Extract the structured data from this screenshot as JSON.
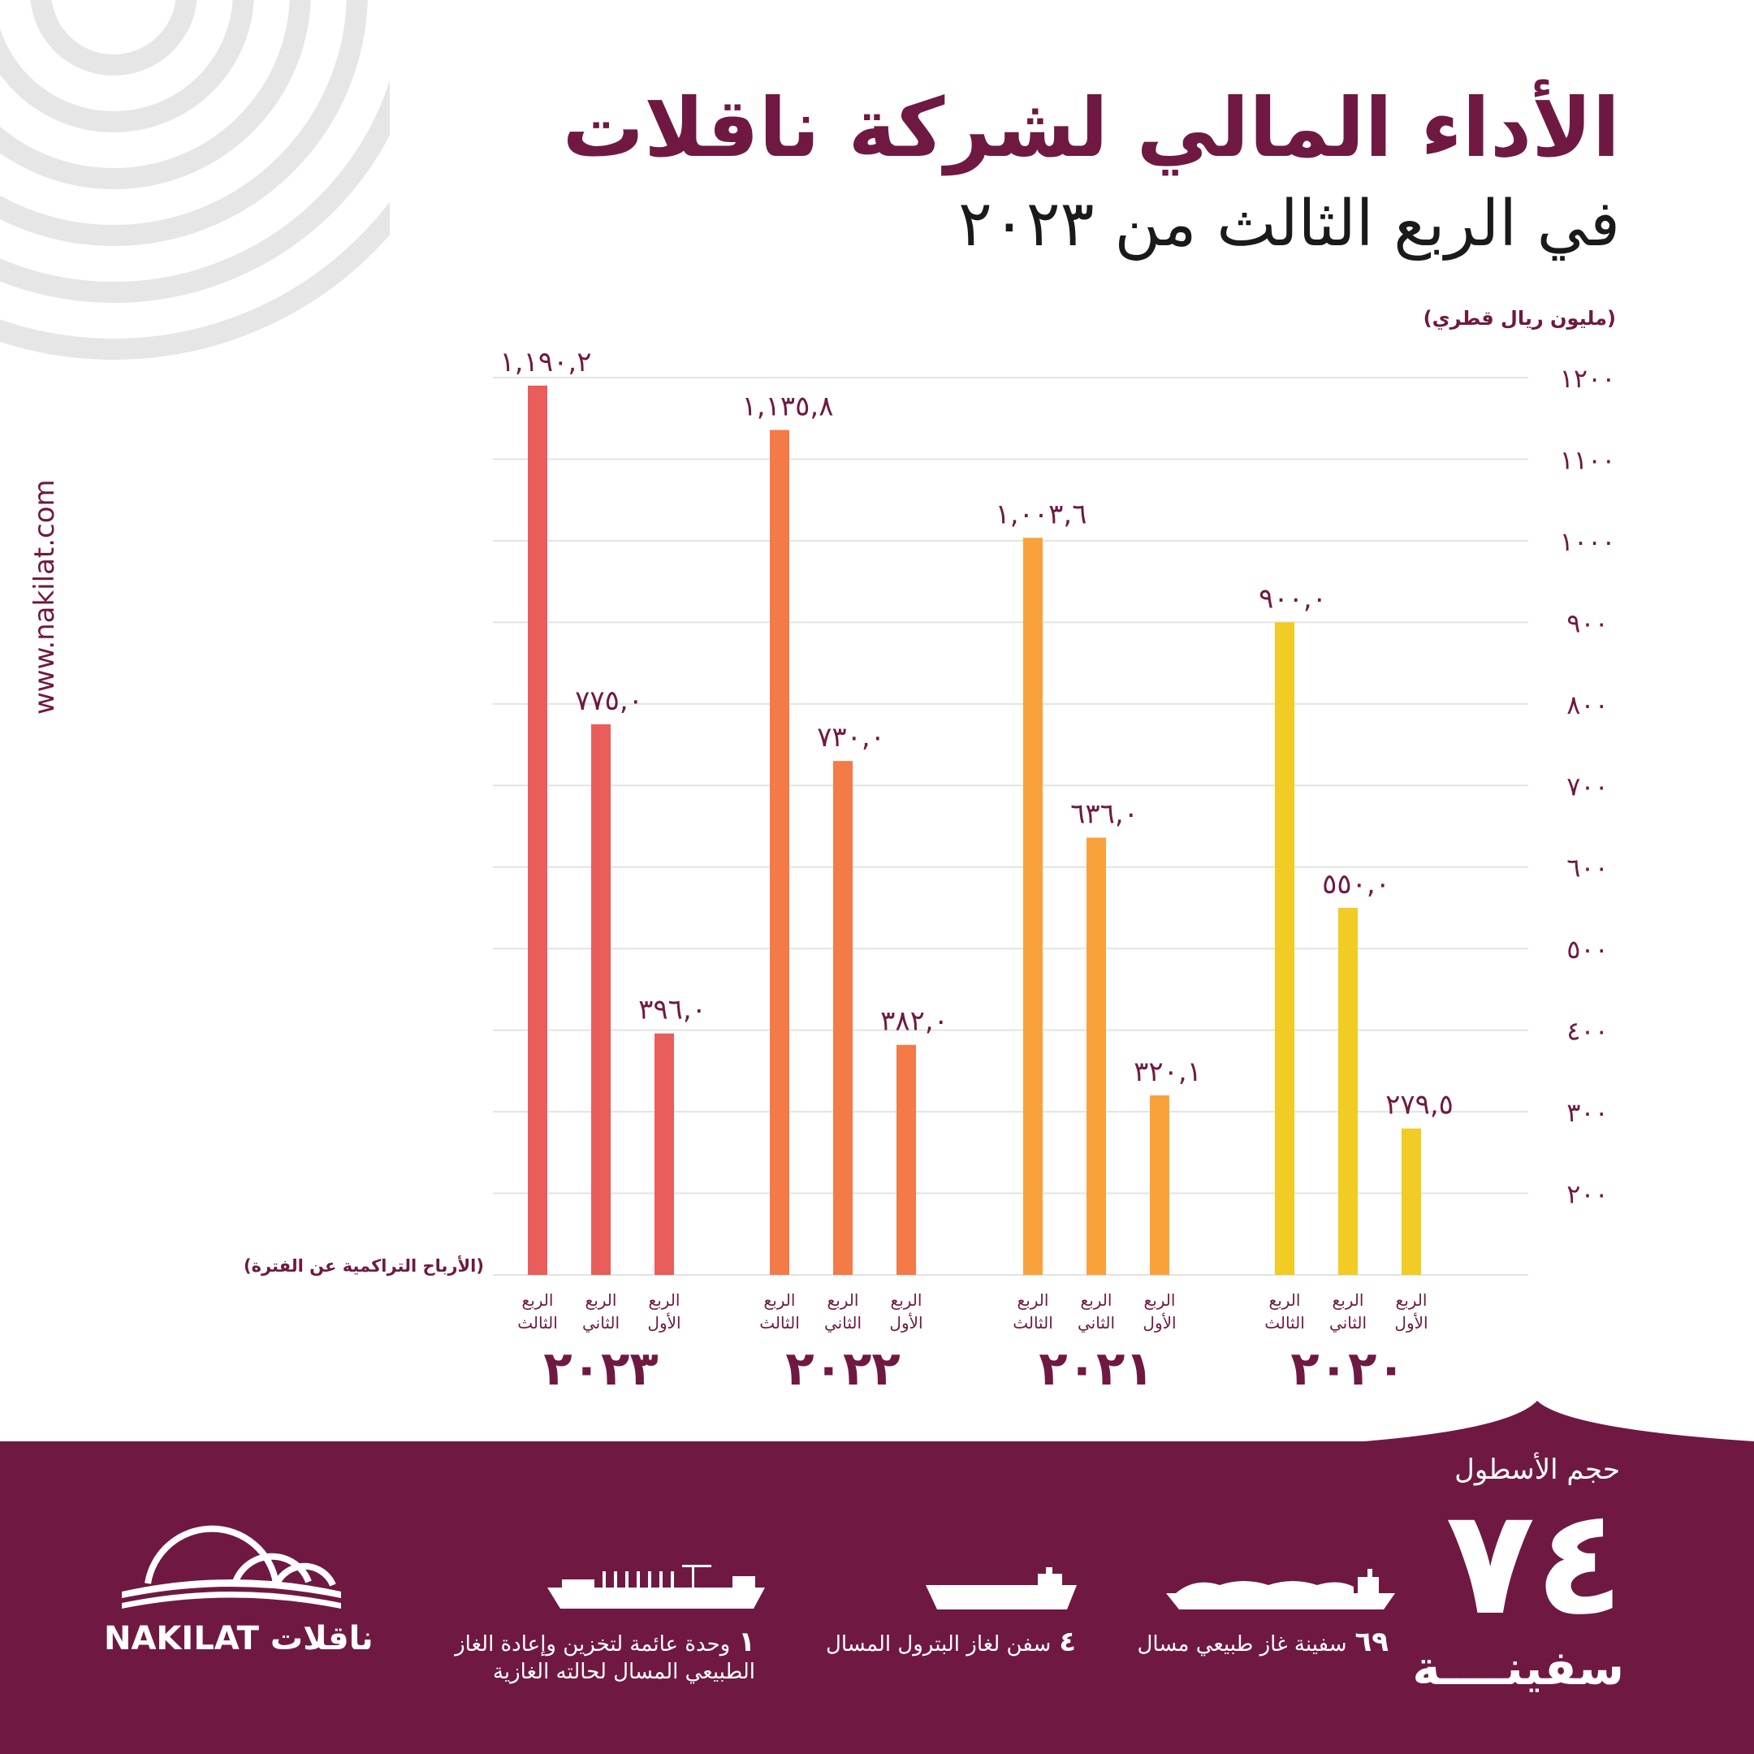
{
  "title": "الأداء المالي لشركة ناقلات",
  "subtitle": "في الربع الثالث من ٢٠٢٣",
  "website": "www.nakilat.com",
  "colors": {
    "brand": "#6f1942",
    "year_2023": "#e95d5b",
    "year_2022": "#f47a48",
    "year_2021": "#f9a23c",
    "year_2020": "#f2cb24"
  },
  "chart_data": {
    "type": "bar",
    "title": "",
    "ylabel": "(مليون ريال قطري)",
    "xlabel": "(الأرباح التراكمية عن الفترة)",
    "ylim": [
      100,
      1200
    ],
    "yticks": [
      {
        "value": 1200,
        "label": "١٢٠٠"
      },
      {
        "value": 1100,
        "label": "١١٠٠"
      },
      {
        "value": 1000,
        "label": "١٠٠٠"
      },
      {
        "value": 900,
        "label": "٩٠٠"
      },
      {
        "value": 800,
        "label": "٨٠٠"
      },
      {
        "value": 700,
        "label": "٧٠٠"
      },
      {
        "value": 600,
        "label": "٦٠٠"
      },
      {
        "value": 500,
        "label": "٥٠٠"
      },
      {
        "value": 400,
        "label": "٤٠٠"
      },
      {
        "value": 300,
        "label": "٣٠٠"
      },
      {
        "value": 200,
        "label": "٢٠٠"
      }
    ],
    "grid": true,
    "groups": [
      {
        "year": "٢٠٢٣",
        "color": "#e95d5b",
        "bars": [
          {
            "quarter": "الربع الثالث",
            "value": 1190.2,
            "label": "١,١٩٠,٢"
          },
          {
            "quarter": "الربع الثاني",
            "value": 775.0,
            "label": "٧٧٥,٠"
          },
          {
            "quarter": "الربع الأول",
            "value": 396.0,
            "label": "٣٩٦,٠"
          }
        ]
      },
      {
        "year": "٢٠٢٢",
        "color": "#f47a48",
        "bars": [
          {
            "quarter": "الربع الثالث",
            "value": 1135.8,
            "label": "١,١٣٥,٨"
          },
          {
            "quarter": "الربع الثاني",
            "value": 730.0,
            "label": "٧٣٠,٠"
          },
          {
            "quarter": "الربع الأول",
            "value": 382.0,
            "label": "٣٨٢,٠"
          }
        ]
      },
      {
        "year": "٢٠٢١",
        "color": "#f9a23c",
        "bars": [
          {
            "quarter": "الربع الثالث",
            "value": 1003.6,
            "label": "١,٠٠٣,٦"
          },
          {
            "quarter": "الربع الثاني",
            "value": 636.0,
            "label": "٦٣٦,٠"
          },
          {
            "quarter": "الربع الأول",
            "value": 320.1,
            "label": "٣٢٠,١"
          }
        ]
      },
      {
        "year": "٢٠٢٠",
        "color": "#f2cb24",
        "bars": [
          {
            "quarter": "الربع الثالث",
            "value": 900.0,
            "label": "٩٠٠,٠"
          },
          {
            "quarter": "الربع الثاني",
            "value": 550.0,
            "label": "٥٥٠,٠"
          },
          {
            "quarter": "الربع الأول",
            "value": 279.5,
            "label": "٢٧٩,٥"
          }
        ]
      }
    ]
  },
  "fleet": {
    "label": "حجم الأسطول",
    "count": "٧٤",
    "unit": "سفينــــة",
    "ships": [
      {
        "icon": "lng-carrier-icon",
        "count": "٦٩",
        "label": "سفينة غاز طبيعي مسال"
      },
      {
        "icon": "lpg-carrier-icon",
        "count": "٤",
        "label": "سفن لغاز البترول المسال"
      },
      {
        "icon": "fsru-icon",
        "count": "١",
        "label": "وحدة عائمة لتخزين وإعادة الغاز",
        "label_line2": "الطبيعي المسال لحالته الغازية"
      }
    ]
  },
  "logo": {
    "icon": "nakilat-domes-logo",
    "text": "NAKILAT ناقلات"
  }
}
